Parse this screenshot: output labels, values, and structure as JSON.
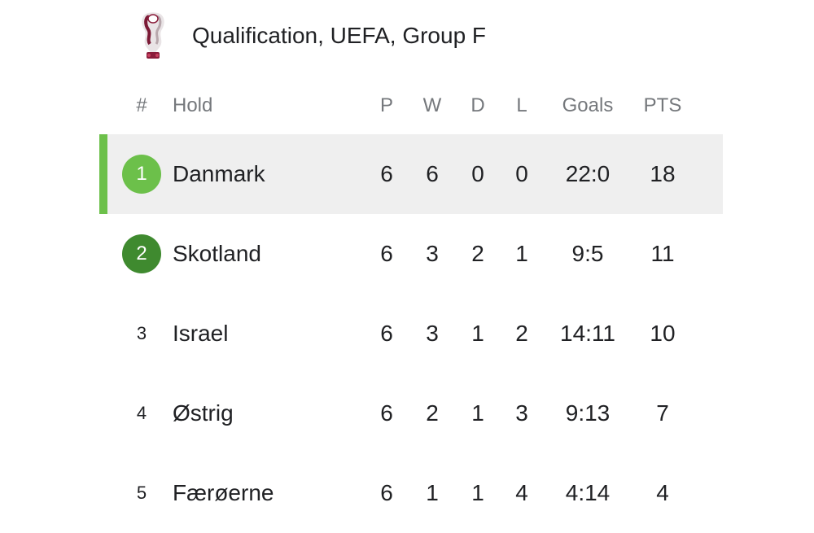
{
  "header": {
    "title": "Qualification, UEFA, Group F",
    "logo_icon": "world-cup-trophy-logo-icon"
  },
  "columns": {
    "rank": "#",
    "team": "Hold",
    "played": "P",
    "won": "W",
    "drawn": "D",
    "lost": "L",
    "goals": "Goals",
    "points": "PTS"
  },
  "rows": [
    {
      "rank": "1",
      "team": "Danmark",
      "p": "6",
      "w": "6",
      "d": "0",
      "l": "0",
      "goals": "22:0",
      "pts": "18"
    },
    {
      "rank": "2",
      "team": "Skotland",
      "p": "6",
      "w": "3",
      "d": "2",
      "l": "1",
      "goals": "9:5",
      "pts": "11"
    },
    {
      "rank": "3",
      "team": "Israel",
      "p": "6",
      "w": "3",
      "d": "1",
      "l": "2",
      "goals": "14:11",
      "pts": "10"
    },
    {
      "rank": "4",
      "team": "Østrig",
      "p": "6",
      "w": "2",
      "d": "1",
      "l": "3",
      "goals": "9:13",
      "pts": "7"
    },
    {
      "rank": "5",
      "team": "Færøerne",
      "p": "6",
      "w": "1",
      "d": "1",
      "l": "4",
      "goals": "4:14",
      "pts": "4"
    }
  ],
  "colors": {
    "qualified": "#6cc04a",
    "playoff": "#3f8a2f",
    "selected_row_bg": "#efefef",
    "header_text": "#75787c"
  }
}
